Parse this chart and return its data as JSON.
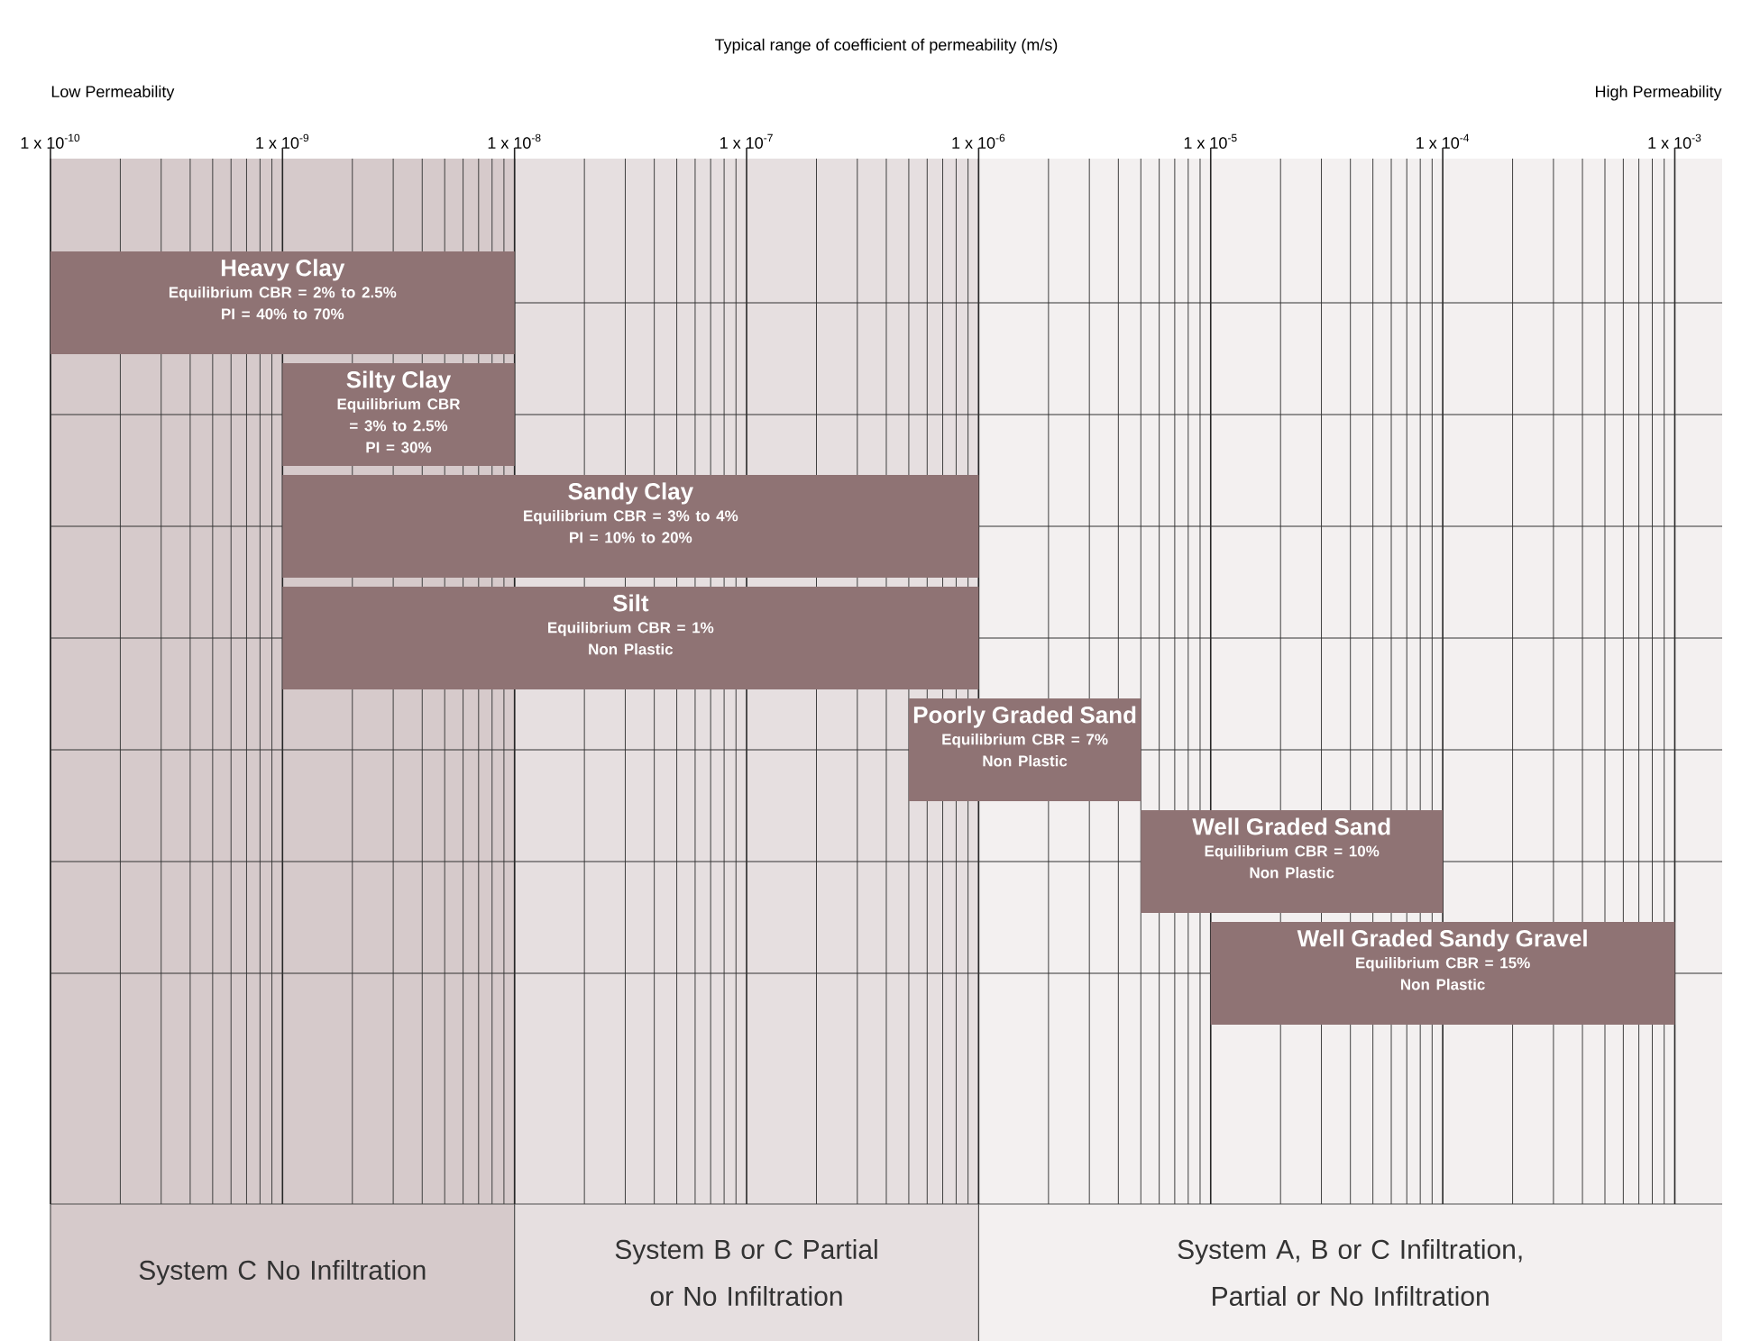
{
  "chart_data": {
    "type": "bar",
    "orientation": "horizontal",
    "title": "Typical range of coefficient of permeability (m/s)",
    "categories": [
      "Heavy Clay",
      "Silty Clay",
      "Sandy Clay",
      "Silt",
      "Poorly Graded Sand",
      "Well Graded Sand",
      "Well Graded Sandy Gravel"
    ],
    "base": [
      1e-10,
      1e-09,
      1e-09,
      1e-09,
      5e-07,
      5e-06,
      1e-05
    ],
    "values": [
      9.9e-09,
      9e-09,
      9.99e-07,
      9.99e-07,
      4.5e-06,
      9.5e-05,
      0.00099
    ],
    "color": "#8f7374",
    "log": "x",
    "xlim": [
      1e-10,
      0.0016
    ],
    "xticks": [
      {
        "value": 1e-10,
        "label": "1 x 10$^{-10}$"
      },
      {
        "value": 1e-09,
        "label": "1 x 10$^{-9}$"
      },
      {
        "value": 1e-08,
        "label": "1 x 10$^{-8}$"
      },
      {
        "value": 1e-07,
        "label": "1 x 10$^{-7}$"
      },
      {
        "value": 1e-06,
        "label": "1 x 10$^{-6}$"
      },
      {
        "value": 1e-05,
        "label": "1 x 10$^{-5}$"
      },
      {
        "value": 0.0001,
        "label": "1 x 10$^{-4}$"
      },
      {
        "value": 0.001,
        "label": "1 x 10$^{-3}$"
      }
    ],
    "tick_labels": "x",
    "grid": true,
    "bands": [
      {
        "axis": "x",
        "from": 1e-10,
        "to": 1e-08,
        "label": "System C No Infiltration",
        "color": "#d6cacb"
      },
      {
        "axis": "x",
        "from": 1e-08,
        "to": 1e-06,
        "label": "System B or C Partial or No Infiltration",
        "color": "#e6dfe0"
      },
      {
        "axis": "x",
        "from": 1e-06,
        "to": 0.0016,
        "label": "System A, B or C Infiltration, Partial or No Infiltration",
        "color": "#f3f0f0"
      }
    ],
    "annotations": [
      "Low Permeability",
      "High Permeability",
      "Equilibrium CBR = 2% to 2.5%",
      "PI = 40% to 70%",
      "Equilibrium CBR = 3% to 2.5%",
      "PI = 30%",
      "Equilibrium CBR = 3% to 4%",
      "PI = 10% to 20%",
      "Equilibrium CBR = 1%",
      "Non Plastic",
      "Equilibrium CBR = 7%",
      "Non Plastic",
      "Equilibrium CBR = 10%",
      "Non Plastic",
      "Equilibrium CBR = 15%",
      "Non Plastic"
    ]
  }
}
